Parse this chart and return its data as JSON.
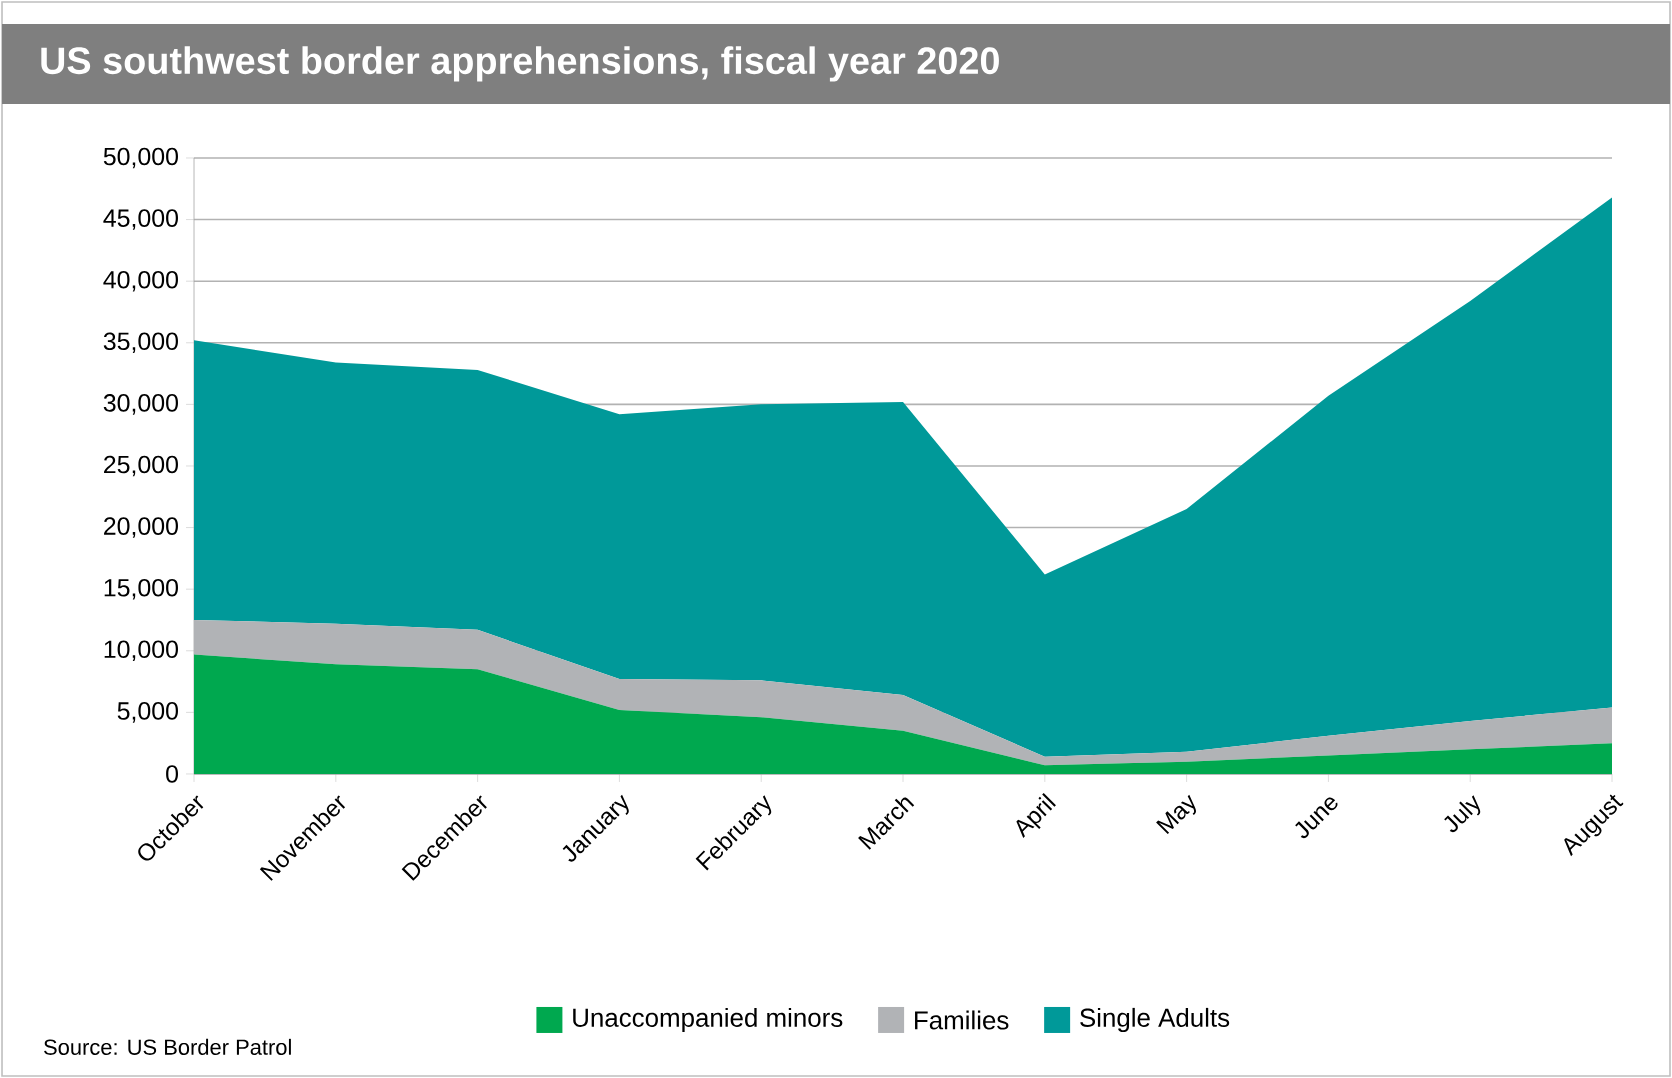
{
  "chart_data": {
    "type": "area",
    "title": "US southwest border apprehensions, fiscal year 2020",
    "stacked": true,
    "categories": [
      "October",
      "November",
      "December",
      "January",
      "February",
      "March",
      "April",
      "May",
      "June",
      "July",
      "August"
    ],
    "series": [
      {
        "name": "Unaccompanied minors",
        "color": "#00a84f",
        "values": [
          9700,
          8900,
          8500,
          5200,
          4600,
          3500,
          700,
          1000,
          1500,
          2000,
          2500
        ]
      },
      {
        "name": "Families",
        "color": "#b1b3b6",
        "values": [
          2800,
          3300,
          3200,
          2500,
          3000,
          2900,
          700,
          800,
          1600,
          2300,
          2900
        ]
      },
      {
        "name": "Single Adults",
        "color": "#009999",
        "values": [
          22700,
          21200,
          21100,
          21500,
          22400,
          23800,
          14800,
          19700,
          27600,
          34100,
          41400
        ]
      }
    ],
    "ylim": [
      0,
      50000
    ],
    "yticks": [
      {
        "value": 0,
        "label": "0"
      },
      {
        "value": 5000,
        "label": "5,000"
      },
      {
        "value": 10000,
        "label": "10,000"
      },
      {
        "value": 15000,
        "label": "15,000"
      },
      {
        "value": 20000,
        "label": "20,000"
      },
      {
        "value": 25000,
        "label": "25,000"
      },
      {
        "value": 30000,
        "label": "30,000"
      },
      {
        "value": 35000,
        "label": "35,000"
      },
      {
        "value": 40000,
        "label": "40,000"
      },
      {
        "value": 45000,
        "label": "45,000"
      },
      {
        "value": 50000,
        "label": "50,000"
      }
    ],
    "grid": "y",
    "legend": "bottom",
    "annotations": [
      "Source: US Border Patrol"
    ]
  }
}
